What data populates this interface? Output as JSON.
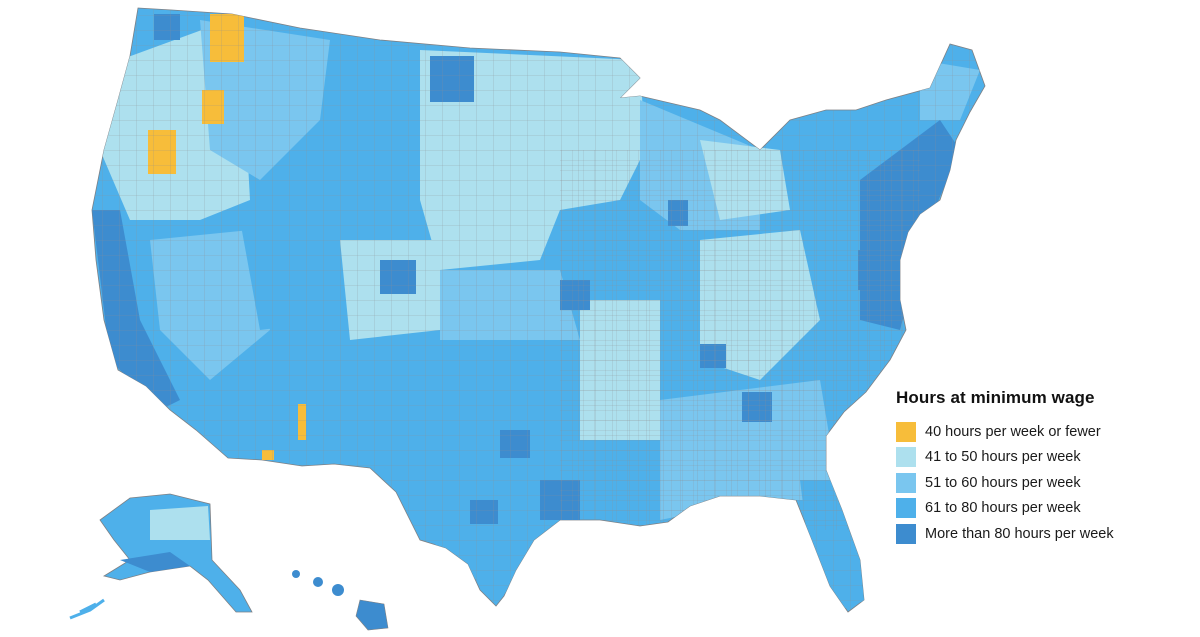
{
  "map": {
    "region": "United States counties",
    "background": "#ffffff",
    "border_color": "#8d8f93"
  },
  "legend": {
    "title": "Hours at minimum wage",
    "items": [
      {
        "label": "40 hours per week or fewer",
        "color": "#f7bd3a"
      },
      {
        "label": "41 to 50 hours per week",
        "color": "#ade0ee"
      },
      {
        "label": "51 to 60 hours per week",
        "color": "#7ac6ef"
      },
      {
        "label": "61 to 80 hours per week",
        "color": "#4eb0ea"
      },
      {
        "label": "More than 80 hours per week",
        "color": "#3d8ccf"
      }
    ]
  }
}
